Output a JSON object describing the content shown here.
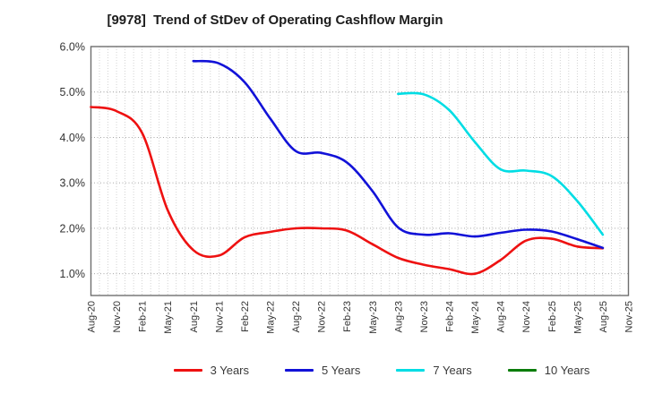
{
  "header": {
    "title": "[9978]  Trend of StDev of Operating Cashflow Margin"
  },
  "chart_data": {
    "type": "line",
    "title": "[9978]  Trend of StDev of Operating Cashflow Margin",
    "xlabel": "",
    "ylabel": "",
    "y_unit": "percent",
    "ylim": [
      0.5,
      6.0
    ],
    "yticks": [
      1.0,
      2.0,
      3.0,
      4.0,
      5.0,
      6.0
    ],
    "ytick_labels": [
      "1.0%",
      "2.0%",
      "3.0%",
      "4.0%",
      "5.0%",
      "6.0%"
    ],
    "xtick_rotation": 90,
    "grid": true,
    "grid_style": "dotted, monthly vertical and 1% horizontal",
    "legend_position": "bottom",
    "categories": [
      "Aug-20",
      "Nov-20",
      "Feb-21",
      "May-21",
      "Aug-21",
      "Nov-21",
      "Feb-22",
      "May-22",
      "Aug-22",
      "Nov-22",
      "Feb-23",
      "May-23",
      "Aug-23",
      "Nov-23",
      "Feb-24",
      "May-24",
      "Aug-24",
      "Nov-24",
      "Feb-25",
      "May-25",
      "Aug-25",
      "Nov-25"
    ],
    "series": [
      {
        "name": "3 Years",
        "color": "#ee1111",
        "values": [
          4.67,
          4.58,
          4.1,
          2.4,
          1.52,
          1.4,
          1.8,
          1.92,
          2.0,
          2.0,
          1.95,
          1.65,
          1.35,
          1.2,
          1.1,
          1.0,
          1.3,
          1.73,
          1.77,
          1.6,
          1.56,
          null
        ]
      },
      {
        "name": "5 Years",
        "color": "#1212d8",
        "values": [
          null,
          null,
          null,
          null,
          5.68,
          5.63,
          5.22,
          4.42,
          3.7,
          3.66,
          3.45,
          2.82,
          2.02,
          1.86,
          1.89,
          1.82,
          1.9,
          1.97,
          1.93,
          1.76,
          1.57,
          null
        ]
      },
      {
        "name": "7 Years",
        "color": "#00dde4",
        "values": [
          null,
          null,
          null,
          null,
          null,
          null,
          null,
          null,
          null,
          null,
          null,
          null,
          4.96,
          4.95,
          4.6,
          3.9,
          3.3,
          3.27,
          3.15,
          2.6,
          1.86,
          null
        ]
      },
      {
        "name": "10 Years",
        "color": "#0b7d0b",
        "values": [
          null,
          null,
          null,
          null,
          null,
          null,
          null,
          null,
          null,
          null,
          null,
          null,
          null,
          null,
          null,
          null,
          null,
          null,
          null,
          null,
          null,
          null
        ]
      }
    ]
  }
}
